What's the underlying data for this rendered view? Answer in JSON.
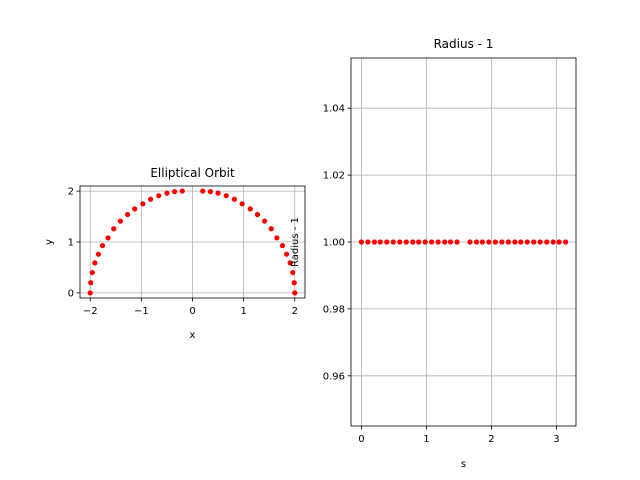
{
  "chart_data": [
    {
      "type": "scatter",
      "title": "Elliptical Orbit",
      "xlabel": "x",
      "ylabel": "y",
      "xlim": [
        -2.2,
        2.2
      ],
      "ylim": [
        -0.1,
        2.1
      ],
      "xticks": [
        -2,
        -1,
        0,
        1,
        2
      ],
      "xtick_labels": [
        "−2",
        "−1",
        "0",
        "1",
        "2"
      ],
      "yticks": [
        0,
        1,
        2
      ],
      "ytick_labels": [
        "0",
        "1",
        "2"
      ],
      "grid": true,
      "marker_color": "#ff0000",
      "series": [
        {
          "x": [
            2.0,
            1.99,
            1.96,
            1.91,
            1.84,
            1.76,
            1.65,
            1.54,
            1.41,
            1.27,
            1.13,
            0.97,
            0.82,
            0.66,
            0.5,
            0.35,
            0.2,
            -0.2,
            -0.35,
            -0.5,
            -0.66,
            -0.82,
            -0.97,
            -1.13,
            -1.27,
            -1.41,
            -1.54,
            -1.65,
            -1.76,
            -1.84,
            -1.91,
            -1.96,
            -1.99,
            -2.0
          ],
          "y": [
            0.0,
            0.2,
            0.4,
            0.59,
            0.76,
            0.93,
            1.08,
            1.26,
            1.41,
            1.54,
            1.65,
            1.75,
            1.84,
            1.91,
            1.96,
            1.99,
            2.0,
            2.0,
            1.99,
            1.96,
            1.91,
            1.84,
            1.75,
            1.65,
            1.54,
            1.41,
            1.26,
            1.08,
            0.93,
            0.76,
            0.59,
            0.4,
            0.2,
            0.0
          ]
        }
      ]
    },
    {
      "type": "scatter",
      "title": "Radius - 1",
      "xlabel": "s",
      "ylabel": "Radius - 1",
      "xlim": [
        -0.16,
        3.3
      ],
      "ylim": [
        0.945,
        1.055
      ],
      "xticks": [
        0,
        1,
        2,
        3
      ],
      "xtick_labels": [
        "0",
        "1",
        "2",
        "3"
      ],
      "yticks": [
        0.96,
        0.98,
        1.0,
        1.02,
        1.04
      ],
      "ytick_labels": [
        "0.96",
        "0.98",
        "1.00",
        "1.02",
        "1.04"
      ],
      "grid": true,
      "marker_color": "#ff0000",
      "series": [
        {
          "x": [
            0.0,
            0.1,
            0.2,
            0.29,
            0.39,
            0.49,
            0.59,
            0.69,
            0.79,
            0.88,
            0.98,
            1.08,
            1.18,
            1.28,
            1.37,
            1.47,
            1.67,
            1.77,
            1.86,
            1.96,
            2.06,
            2.16,
            2.26,
            2.36,
            2.45,
            2.55,
            2.65,
            2.75,
            2.85,
            2.95,
            3.04,
            3.14
          ],
          "y": [
            1.0,
            1.0,
            1.0,
            1.0,
            1.0,
            1.0,
            1.0,
            1.0,
            1.0,
            1.0,
            1.0,
            1.0,
            1.0,
            1.0,
            1.0,
            1.0,
            1.0,
            1.0,
            1.0,
            1.0,
            1.0,
            1.0,
            1.0,
            1.0,
            1.0,
            1.0,
            1.0,
            1.0,
            1.0,
            1.0,
            1.0,
            1.0
          ]
        }
      ]
    }
  ]
}
